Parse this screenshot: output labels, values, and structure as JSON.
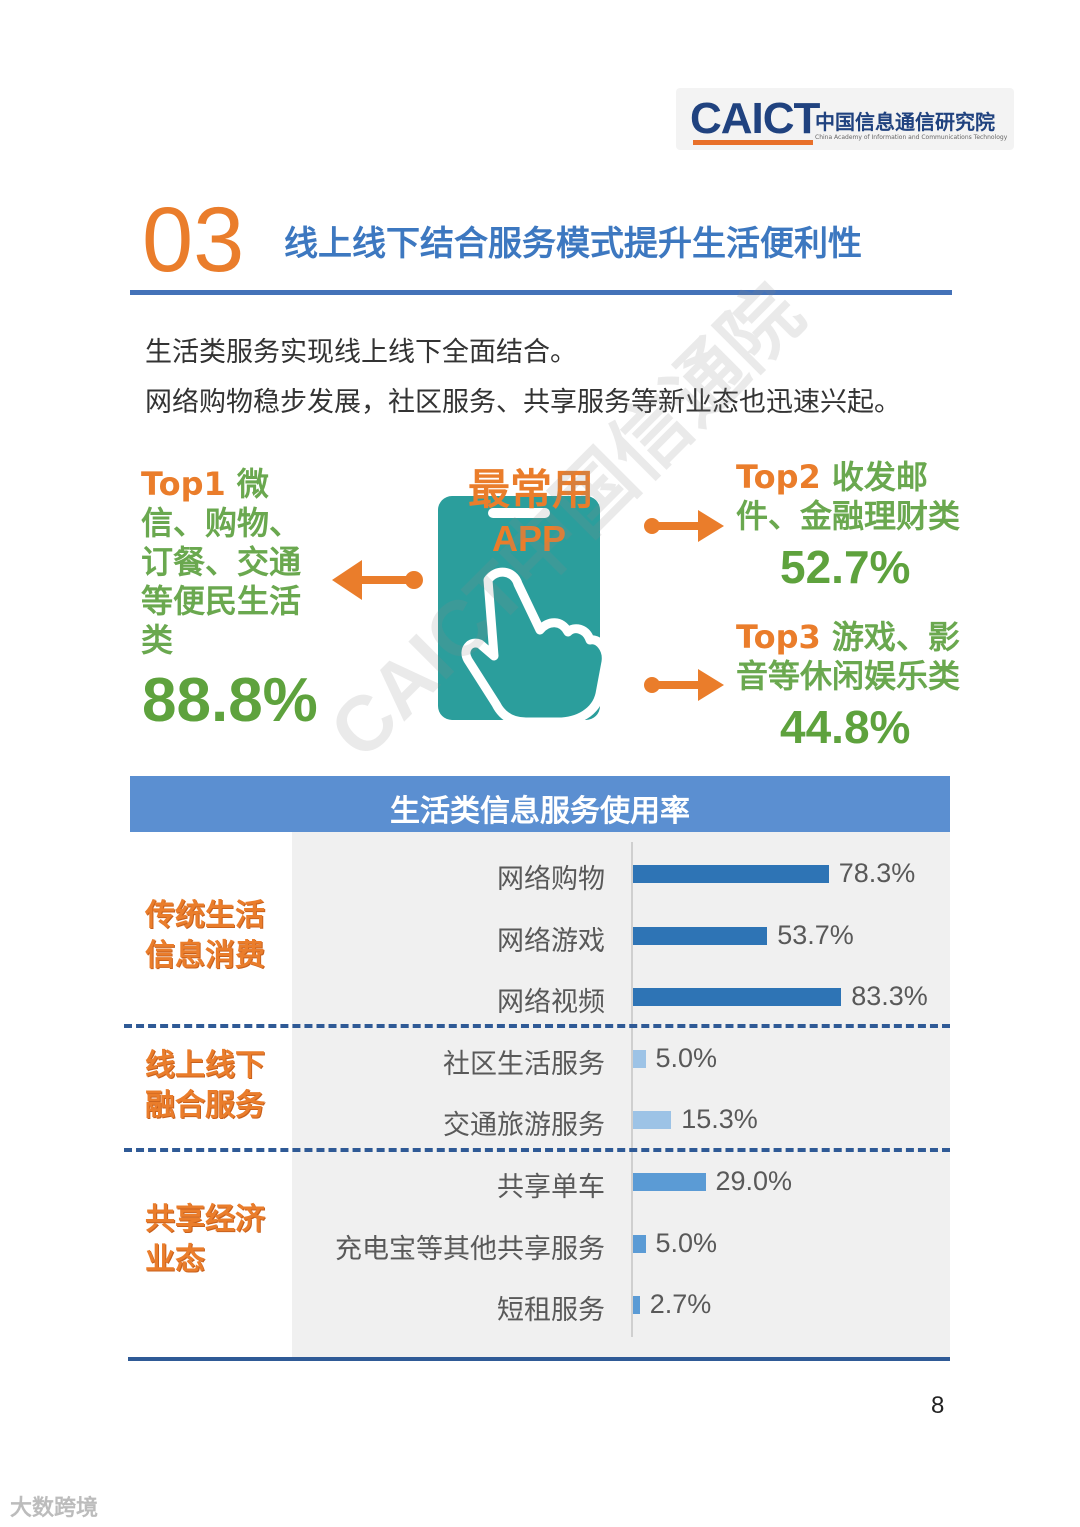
{
  "logo": {
    "mark": "CAICT",
    "cn": "中国信息通信研究院",
    "en": "China Academy of Information and Communications Technology"
  },
  "section": {
    "number": "03",
    "title": "线上线下结合服务模式提升生活便利性"
  },
  "intro": [
    "生活类服务实现线上线下全面结合。",
    "网络购物稳步发展，社区服务、共享服务等新业态也迅速兴起。"
  ],
  "app": {
    "title": "最常用",
    "sub": "APP"
  },
  "top1": {
    "rank": "Top1",
    "text": "微信、购物、订餐、交通等便民生活类",
    "pct": "88.8%"
  },
  "top2": {
    "rank": "Top2",
    "text": "收发邮件、金融理财类",
    "pct": "52.7%"
  },
  "top3": {
    "rank": "Top3",
    "text": "游戏、影音等休闲娱乐类",
    "pct": "44.8%"
  },
  "table": {
    "title": "生活类信息服务使用率",
    "groups": [
      {
        "label_line1": "传统生活",
        "label_line2": "信息消费"
      },
      {
        "label_line1": "线上线下",
        "label_line2": "融合服务"
      },
      {
        "label_line1": "共享经济",
        "label_line2": "业态"
      }
    ],
    "rows": [
      {
        "label": "网络购物",
        "value": 78.3,
        "display": "78.3%"
      },
      {
        "label": "网络游戏",
        "value": 53.7,
        "display": "53.7%"
      },
      {
        "label": "网络视频",
        "value": 83.3,
        "display": "83.3%"
      },
      {
        "label": "社区生活服务",
        "value": 5.0,
        "display": "5.0%"
      },
      {
        "label": "交通旅游服务",
        "value": 15.3,
        "display": "15.3%"
      },
      {
        "label": "共享单车",
        "value": 29.0,
        "display": "29.0%"
      },
      {
        "label": "充电宝等其他共享服务",
        "value": 5.0,
        "display": "5.0%"
      },
      {
        "label": "短租服务",
        "value": 2.7,
        "display": "2.7%"
      }
    ],
    "colors": {
      "group1": "#2e74b5",
      "group2": "#9dc3e6",
      "group3": "#5b9bd5"
    }
  },
  "chart_data": {
    "type": "bar",
    "title": "生活类信息服务使用率",
    "categories": [
      "网络购物",
      "网络游戏",
      "网络视频",
      "社区生活服务",
      "交通旅游服务",
      "共享单车",
      "充电宝等其他共享服务",
      "短租服务"
    ],
    "values": [
      78.3,
      53.7,
      83.3,
      5.0,
      15.3,
      29.0,
      5.0,
      2.7
    ],
    "xlabel": "",
    "ylabel": ""
  },
  "page_number": "8",
  "footer": "大数跨境",
  "watermark": "CAICT中国信通院"
}
